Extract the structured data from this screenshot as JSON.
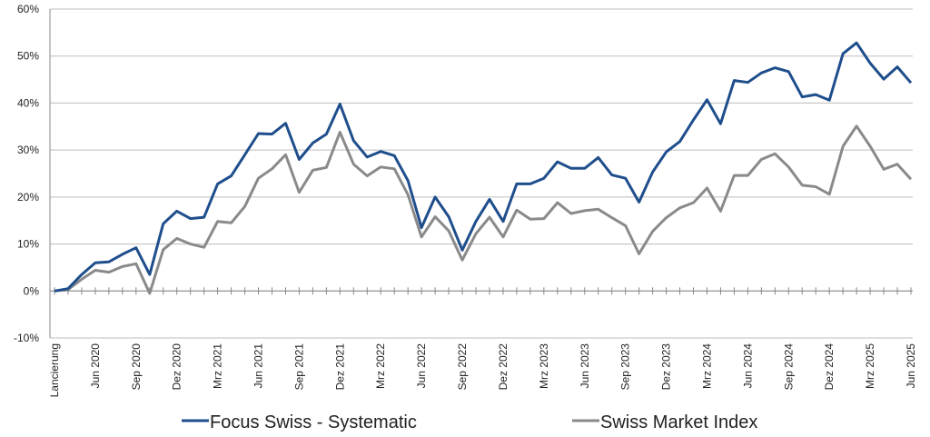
{
  "chart_data": {
    "type": "line",
    "categories": [
      "Lancierung",
      null,
      null,
      "Jun 2020",
      null,
      null,
      "Sep 2020",
      null,
      null,
      "Dez 2020",
      null,
      null,
      "Mrz 2021",
      null,
      null,
      "Jun 2021",
      null,
      null,
      "Sep 2021",
      null,
      null,
      "Dez 2021",
      null,
      null,
      "Mrz 2022",
      null,
      null,
      "Jun 2022",
      null,
      null,
      "Sep 2022",
      null,
      null,
      "Dez 2022",
      null,
      null,
      "Mrz 2023",
      null,
      null,
      "Jun 2023",
      null,
      null,
      "Sep 2023",
      null,
      null,
      "Dez 2023",
      null,
      null,
      "Mrz 2024",
      null,
      null,
      "Jun 2024",
      null,
      null,
      "Sep 2024",
      null,
      null,
      "Dez 2024",
      null,
      null,
      "Mrz 2025",
      null,
      null,
      "Jun 2025"
    ],
    "series": [
      {
        "name": "Focus Swiss - Systematic",
        "color": "#1f4e8c",
        "values": [
          0,
          0.5,
          3.5,
          6,
          6.2,
          7.8,
          9.2,
          3.5,
          14.3,
          17,
          15.4,
          15.7,
          22.8,
          24.5,
          29,
          33.5,
          33.4,
          35.7,
          28,
          31.5,
          33.4,
          39.8,
          32,
          28.5,
          29.7,
          28.8,
          23.5,
          13.5,
          20,
          15.8,
          8.7,
          14.8,
          19.5,
          14.8,
          22.8,
          22.8,
          24,
          27.5,
          26.1,
          26.1,
          28.4,
          24.7,
          24,
          18.9,
          25.3,
          29.6,
          31.8,
          36.4,
          40.7,
          35.6,
          44.8,
          44.4,
          46.4,
          47.5,
          46.7,
          41.3,
          41.8,
          40.6,
          50.5,
          52.8,
          48.5,
          45.1,
          47.7,
          44.3
        ]
      },
      {
        "name": "Swiss Market Index",
        "color": "#8a8a8a",
        "values": [
          0,
          0.3,
          2.5,
          4.4,
          4,
          5.2,
          5.8,
          -0.5,
          8.8,
          11.2,
          10,
          9.3,
          14.8,
          14.5,
          18,
          24,
          26,
          29,
          21,
          25.7,
          26.3,
          33.8,
          27,
          24.5,
          26.4,
          26,
          20.5,
          11.5,
          15.8,
          12.8,
          6.6,
          12.2,
          15.7,
          11.5,
          17.2,
          15.3,
          15.4,
          18.8,
          16.5,
          17.1,
          17.4,
          15.6,
          13.9,
          7.9,
          12.7,
          15.6,
          17.7,
          18.8,
          21.9,
          17,
          24.6,
          24.6,
          28,
          29.2,
          26.4,
          22.5,
          22.2,
          20.6,
          30.8,
          35.1,
          30.8,
          25.9,
          27,
          23.8
        ]
      }
    ],
    "ylim": [
      -10,
      60
    ],
    "yticks": [
      {
        "value": -10,
        "label": "-10%"
      },
      {
        "value": 0,
        "label": "0%"
      },
      {
        "value": 10,
        "label": "10%"
      },
      {
        "value": 20,
        "label": "20%"
      },
      {
        "value": 30,
        "label": "30%"
      },
      {
        "value": 40,
        "label": "40%"
      },
      {
        "value": 50,
        "label": "50%"
      },
      {
        "value": 60,
        "label": "60%"
      }
    ],
    "grid": true
  }
}
